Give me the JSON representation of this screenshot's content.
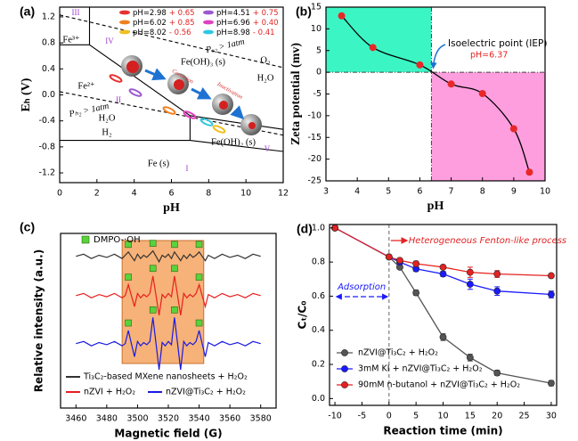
{
  "chart_data": [
    {
      "type": "line",
      "panel": "(a)",
      "xlabel": "pH",
      "ylabel": "Eₕ (V)",
      "xlim": [
        0,
        12
      ],
      "ylim": [
        -1.35,
        1.35
      ],
      "xticks": [
        0,
        2,
        4,
        6,
        8,
        10,
        12
      ],
      "yticks": [
        -1.2,
        -0.8,
        -0.4,
        {
          "value": 0,
          "label": "0.0"
        },
        0.4,
        0.8,
        1.2
      ],
      "boundaries": [
        {
          "x": [
            0,
            12
          ],
          "y": [
            1.23,
            0.42
          ],
          "dashed": true
        },
        {
          "x": [
            0,
            12
          ],
          "y": [
            0.05,
            -0.62
          ],
          "dashed": true
        },
        {
          "x": [
            0,
            1.6
          ],
          "y": [
            0.77,
            0.77
          ],
          "dashed": false
        },
        {
          "x": [
            1.6,
            1.6
          ],
          "y": [
            0.77,
            1.35
          ],
          "dashed": false
        },
        {
          "x": [
            1.6,
            7,
            12
          ],
          "y": [
            0.77,
            -0.32,
            -0.53
          ],
          "dashed": false
        },
        {
          "x": [
            0,
            7,
            12
          ],
          "y": [
            -0.7,
            -0.7,
            -0.87
          ],
          "dashed": false
        },
        {
          "x": [
            7,
            7
          ],
          "y": [
            -0.7,
            -0.32
          ],
          "dashed": false
        }
      ],
      "regions": [
        "III",
        "IV",
        "II",
        "I",
        "V",
        "Fe³⁺",
        "Fe²⁺",
        "Fe(OH)₃ (s)",
        "O₂",
        "H₂O",
        "H₂O",
        "H₂",
        "Fe(OH)₂ (s)",
        "Fe (s)"
      ],
      "annotations": [
        "Pₒ₂ > 1atm",
        "Pₕ₂ > 1atm",
        "Corrosion",
        "Inactivation"
      ],
      "legend": [
        {
          "ph": "pH=2.98",
          "shift": "+ 0.65",
          "color": "#e83030"
        },
        {
          "ph": "pH=4.51",
          "shift": "+ 0.75",
          "color": "#9b59d0"
        },
        {
          "ph": "pH=6.02",
          "shift": "+ 0.85",
          "color": "#f08020"
        },
        {
          "ph": "pH=6.96",
          "shift": "+ 0.40",
          "color": "#e040c0"
        },
        {
          "ph": "pH=8.02",
          "shift": "- 0.56",
          "color": "#f0c020"
        },
        {
          "ph": "pH=8.98",
          "shift": "- 0.41",
          "color": "#30c8e0"
        }
      ]
    },
    {
      "type": "scatter",
      "panel": "(b)",
      "xlabel": "pH",
      "ylabel": "Zeta potential (mv)",
      "xlim": [
        3,
        10
      ],
      "ylim": [
        -25,
        15
      ],
      "xticks": [
        3,
        4,
        5,
        6,
        7,
        8,
        9,
        10
      ],
      "yticks": [
        -25,
        -20,
        -15,
        -10,
        -5,
        0,
        5,
        10,
        15
      ],
      "x": [
        3.5,
        4.5,
        6,
        7,
        8,
        9,
        9.5
      ],
      "y": [
        13,
        5.7,
        1.7,
        -2.7,
        -4.9,
        -13,
        -23
      ],
      "color": "#e82828",
      "positive_color": "#3cf5c4",
      "negative_color": "#ff9ede",
      "iep": 6.37,
      "iep_title": "Isoelectric point (IEP)",
      "iep_label": "pH=6.37"
    },
    {
      "type": "line",
      "panel": "(c)",
      "xlabel": "Magnetic field (G)",
      "ylabel": "Relative intensity (a.u.)",
      "xlim": [
        3450,
        3590
      ],
      "ylim": [
        -2.95,
        5.05
      ],
      "xticks": [
        3460,
        3480,
        3500,
        3520,
        3540,
        3560,
        3580
      ],
      "highlight": [
        3490,
        3543
      ],
      "highlight_color": "#f4a460",
      "dmpo_label": "DMPO-·OH",
      "dmpo_color": "#5ad23c",
      "dmpo_peaks": [
        3494,
        3510,
        3524,
        3540
      ],
      "x": [
        3460,
        3465,
        3470,
        3475,
        3480,
        3485,
        3490,
        3492,
        3494,
        3496,
        3498,
        3500,
        3502,
        3504,
        3506,
        3508,
        3510,
        3512,
        3514,
        3516,
        3518,
        3520,
        3522,
        3524,
        3526,
        3528,
        3530,
        3532,
        3534,
        3536,
        3538,
        3540,
        3542,
        3544,
        3546,
        3550,
        3555,
        3560,
        3565,
        3570,
        3575,
        3580
      ],
      "series": [
        {
          "name": "Ti₃C₂-based MXene nanosheets + H₂O₂",
          "color": "#333333",
          "values": [
            4.0,
            4.1,
            3.9,
            4.05,
            3.95,
            4.1,
            3.9,
            4.05,
            4.2,
            4.0,
            3.8,
            4.1,
            3.9,
            4.05,
            3.95,
            4.1,
            4.25,
            4.0,
            3.75,
            4.05,
            3.95,
            4.1,
            3.9,
            4.2,
            4.0,
            3.8,
            4.05,
            3.9,
            4.1,
            3.95,
            4.05,
            4.2,
            4.0,
            3.8,
            4.05,
            3.9,
            4.1,
            3.95,
            4.05,
            3.9,
            4.1,
            4.0
          ]
        },
        {
          "name": "nZVI + H₂O₂",
          "color": "#e81e1e",
          "values": [
            2.2,
            2.3,
            2.1,
            2.25,
            2.15,
            2.3,
            2.1,
            2.2,
            2.7,
            2.2,
            1.7,
            2.3,
            2.1,
            2.25,
            2.15,
            2.3,
            3.1,
            2.2,
            1.3,
            2.25,
            2.1,
            2.3,
            2.15,
            3.1,
            2.2,
            1.3,
            2.3,
            2.1,
            2.25,
            2.15,
            2.3,
            2.7,
            2.2,
            1.7,
            2.25,
            2.1,
            2.3,
            2.15,
            2.25,
            2.1,
            2.3,
            2.2
          ]
        },
        {
          "name": "nZVI@Ti₃C₂ + H₂O₂",
          "color": "#1a1ae0",
          "values": [
            0,
            0.1,
            -0.1,
            0.05,
            -0.05,
            0.1,
            -0.1,
            0,
            0.6,
            0,
            -0.6,
            0.1,
            -0.1,
            0.05,
            -0.05,
            0.1,
            1.2,
            0,
            -1.2,
            0.05,
            -0.1,
            0.1,
            -0.05,
            1.2,
            0,
            -1.2,
            0.1,
            -0.1,
            0.05,
            -0.05,
            0.1,
            0.6,
            0,
            -0.6,
            0.05,
            -0.1,
            0.1,
            -0.05,
            0.05,
            -0.1,
            0.1,
            0
          ]
        }
      ]
    },
    {
      "type": "line",
      "panel": "(d)",
      "xlabel": "Reaction time (min)",
      "ylabel": "Cₜ/C₀",
      "xlim": [
        -11,
        31
      ],
      "ylim": [
        -0.04,
        1.02
      ],
      "xticks": [
        -10,
        -5,
        0,
        5,
        10,
        15,
        20,
        25,
        30
      ],
      "yticks": [
        {
          "value": 0,
          "label": "0.0"
        },
        0.2,
        0.4,
        0.6,
        0.8,
        {
          "value": 1,
          "label": "1.0"
        }
      ],
      "divider": 0,
      "fenton": "Heterogeneous Fenton-like process",
      "adsorption": "Adsorption",
      "x": [
        -10,
        0,
        2,
        5,
        10,
        15,
        20,
        30
      ],
      "series": [
        {
          "name": "nZVI@Ti₃C₂ + H₂O₂",
          "color": "#555555",
          "values": [
            1,
            0.83,
            0.77,
            0.62,
            0.36,
            0.24,
            0.15,
            0.09
          ],
          "errors": [
            0.01,
            0.01,
            0.01,
            0.015,
            0.02,
            0.02,
            0.015,
            0.015
          ]
        },
        {
          "name": "3mM KI + nZVI@Ti₃C₂ + H₂O₂",
          "color": "#1a1aff",
          "values": [
            1,
            0.83,
            0.8,
            0.76,
            0.73,
            0.67,
            0.63,
            0.61
          ],
          "errors": [
            0.01,
            0.01,
            0.015,
            0.015,
            0.015,
            0.03,
            0.025,
            0.02
          ]
        },
        {
          "name": "90mM n-butanol + nZVI@Ti₃C₂ + H₂O₂",
          "color": "#e42222",
          "values": [
            1,
            0.83,
            0.81,
            0.79,
            0.77,
            0.74,
            0.73,
            0.72
          ],
          "errors": [
            0.01,
            0.01,
            0.01,
            0.015,
            0.01,
            0.03,
            0.02,
            0.01
          ]
        }
      ]
    }
  ]
}
